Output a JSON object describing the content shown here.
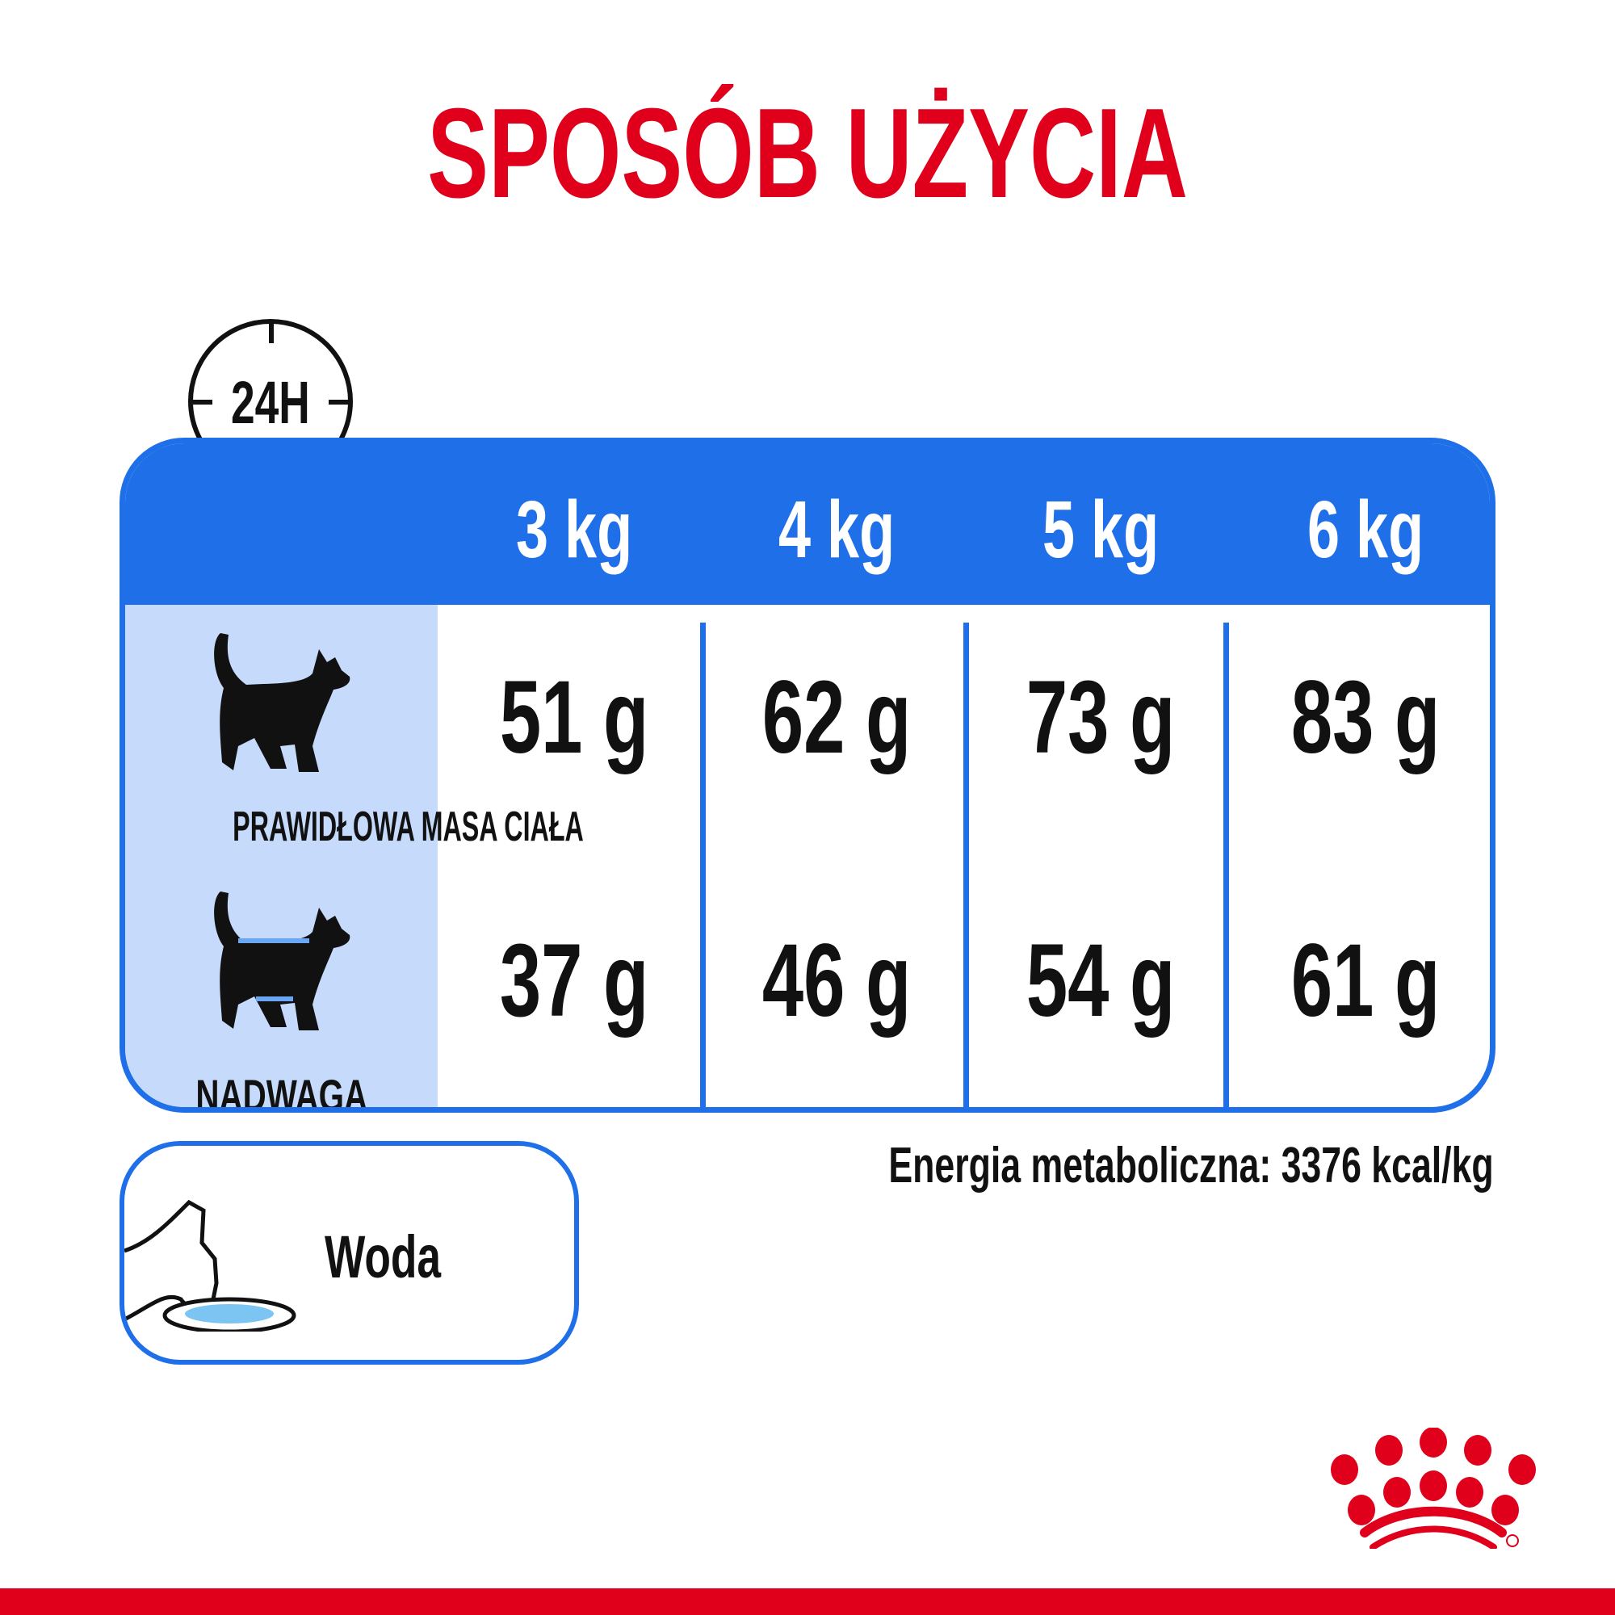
{
  "title": "SPOSÓB UŻYCIA",
  "clock_label": "24H",
  "table": {
    "headers": [
      "3 kg",
      "4 kg",
      "5 kg",
      "6 kg"
    ],
    "rows": [
      {
        "label": "PRAWIDŁOWA MASA CIAŁA",
        "icon": "cat-silhouette-icon",
        "values": [
          "51 g",
          "62 g",
          "73 g",
          "83 g"
        ]
      },
      {
        "label": "NADWAGA",
        "icon": "overweight-cat-icon",
        "values": [
          "37 g",
          "46 g",
          "54 g",
          "61 g"
        ]
      }
    ]
  },
  "energy": "Energia metaboliczna: 3376 kcal/kg",
  "water": {
    "label": "Woda",
    "icon": "cat-drinking-water-icon"
  },
  "colors": {
    "accent_red": "#e0001b",
    "table_blue": "#1f6fe8",
    "label_column": "#c6dbfb"
  },
  "logo": "royal-canin-crown-logo"
}
